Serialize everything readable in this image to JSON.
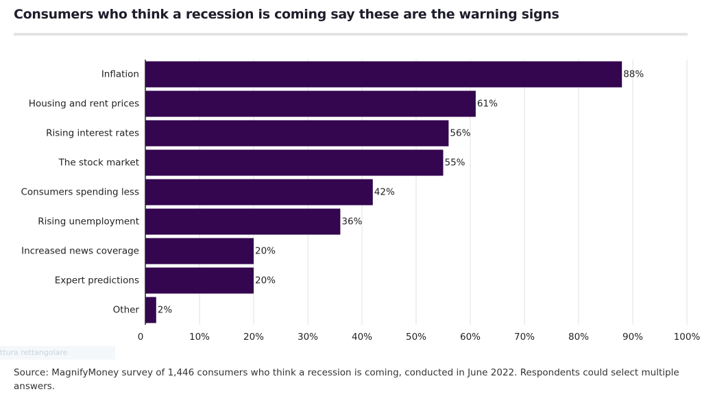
{
  "chart_data": {
    "type": "bar",
    "orientation": "horizontal",
    "title": "Consumers who think a recession is coming say these are the warning signs",
    "categories": [
      "Inflation",
      "Housing and rent prices",
      "Rising interest rates",
      "The stock market",
      "Consumers spending less",
      "Rising unemployment",
      "Increased news coverage",
      "Expert predictions",
      "Other"
    ],
    "values": [
      88,
      61,
      56,
      55,
      42,
      36,
      20,
      20,
      2
    ],
    "value_labels": [
      "88%",
      "61%",
      "56%",
      "55%",
      "42%",
      "36%",
      "20%",
      "20%",
      "2%"
    ],
    "color": "#33064f",
    "xlim": [
      0,
      100
    ],
    "xticks": [
      0,
      {
        "value": 10,
        "label": "10%"
      },
      {
        "value": 20,
        "label": "20%"
      },
      {
        "value": 30,
        "label": "30%"
      },
      {
        "value": 40,
        "label": "40%"
      },
      {
        "value": 50,
        "label": "50%"
      },
      {
        "value": 60,
        "label": "60%"
      },
      {
        "value": 70,
        "label": "70%"
      },
      {
        "value": 80,
        "label": "80%"
      },
      {
        "value": 90,
        "label": "90%"
      },
      {
        "value": 100,
        "label": "100%"
      }
    ],
    "grid": true,
    "source": "Source: MagnifyMoney survey of 1,446 consumers who think a recession is coming, conducted in June 2022. Respondents could select multiple answers.",
    "overlay_text": "ttura rettangolare"
  }
}
